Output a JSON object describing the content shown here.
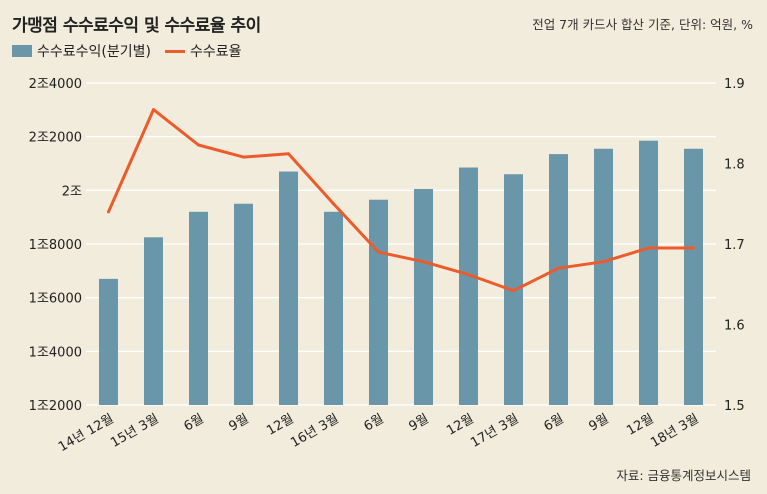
{
  "header": {
    "title": "가맹점 수수료수익 및 수수료율 추이",
    "subtitle": "전업 7개 카드사 합산 기준, 단위: 억원, %"
  },
  "legend": {
    "bar_label": "수수료수익(분기별)",
    "line_label": "수수료율"
  },
  "source": "자료: 금융통계정보시스템",
  "colors": {
    "background": "#f1ecdb",
    "bar": "#6a96a9",
    "line": "#ec5b2c",
    "grid": "#ffffff"
  },
  "chart_data": {
    "type": "bar",
    "categories": [
      "14년 12월",
      "15년 3월",
      "6월",
      "9월",
      "12월",
      "16년 3월",
      "6월",
      "9월",
      "12월",
      "17년 3월",
      "6월",
      "9월",
      "12월",
      "18년 3월"
    ],
    "series": [
      {
        "name": "수수료수익(분기별)",
        "type": "bar",
        "axis": "left",
        "values": [
          16700,
          18250,
          19200,
          19500,
          20700,
          19200,
          19650,
          20050,
          20850,
          20600,
          21350,
          21550,
          21850,
          21550
        ]
      },
      {
        "name": "수수료율",
        "type": "line",
        "axis": "right",
        "values": [
          1.74,
          1.867,
          1.823,
          1.808,
          1.812,
          1.75,
          1.69,
          1.678,
          1.662,
          1.642,
          1.67,
          1.678,
          1.695,
          1.695
        ]
      }
    ],
    "y_left": {
      "ylim": [
        12000,
        24000
      ],
      "ticks": [
        12000,
        14000,
        16000,
        18000,
        20000,
        22000,
        24000
      ],
      "tick_labels": [
        "1조2000",
        "1조4000",
        "1조6000",
        "1조8000",
        "2조",
        "2조2000",
        "2조4000"
      ]
    },
    "y_right": {
      "ylim": [
        1.5,
        1.9
      ],
      "ticks": [
        1.5,
        1.6,
        1.7,
        1.8,
        1.9
      ],
      "tick_labels": [
        "1.5",
        "1.6",
        "1.7",
        "1.8",
        "1.9"
      ]
    },
    "grid": true,
    "legend_position": "top-left"
  }
}
